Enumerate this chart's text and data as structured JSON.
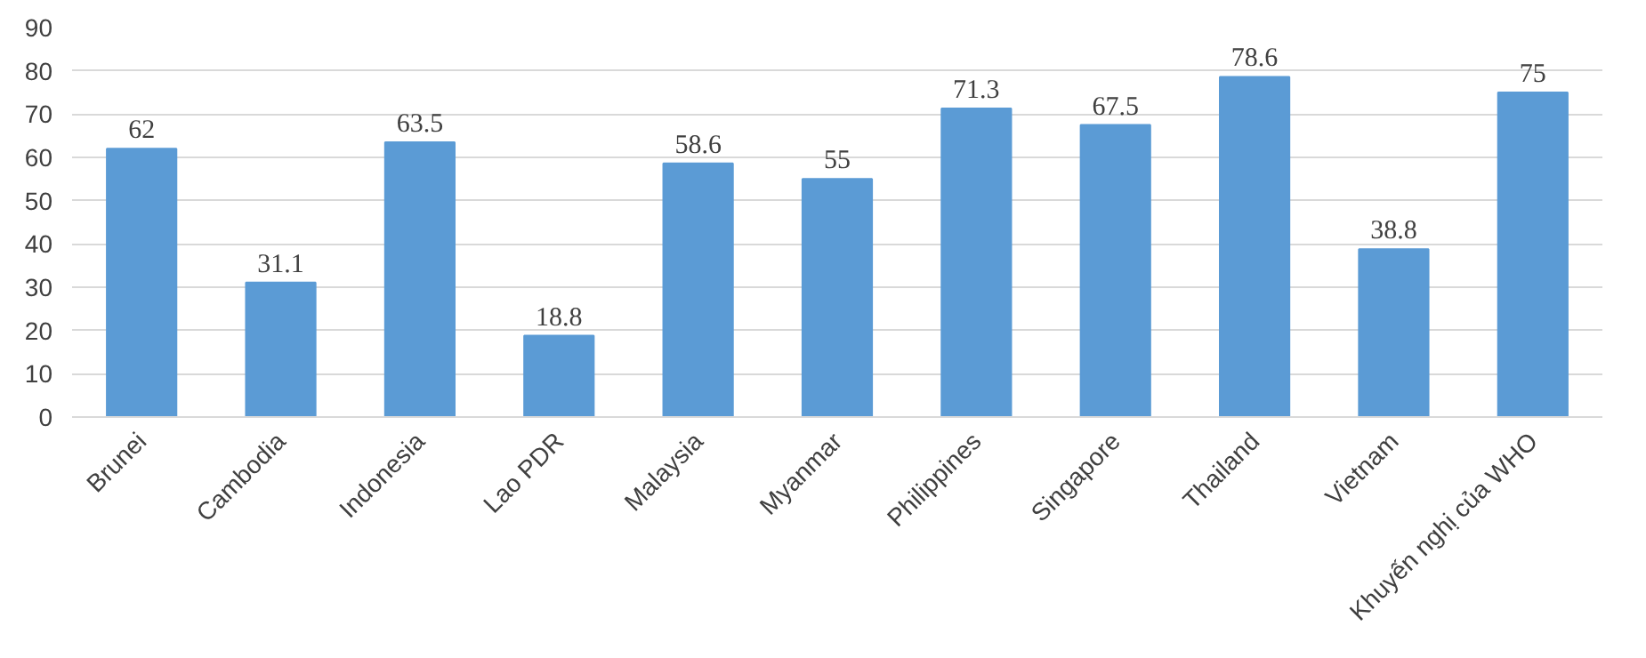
{
  "chart_data": {
    "type": "bar",
    "categories": [
      "Brunei",
      "Cambodia",
      "Indonesia",
      "Lao PDR",
      "Malaysia",
      "Myanmar",
      "Philippines",
      "Singapore",
      "Thailand",
      "Vietnam",
      "Khuyến nghị của WHO"
    ],
    "values": [
      62,
      31.1,
      63.5,
      18.8,
      58.6,
      55,
      71.3,
      67.5,
      78.6,
      38.8,
      75
    ],
    "color": "#5b9bd5",
    "ylim": [
      0,
      90
    ],
    "yticks": [
      0,
      10,
      20,
      30,
      40,
      50,
      60,
      70,
      80,
      90
    ],
    "grid": "y",
    "data_labels": true
  }
}
